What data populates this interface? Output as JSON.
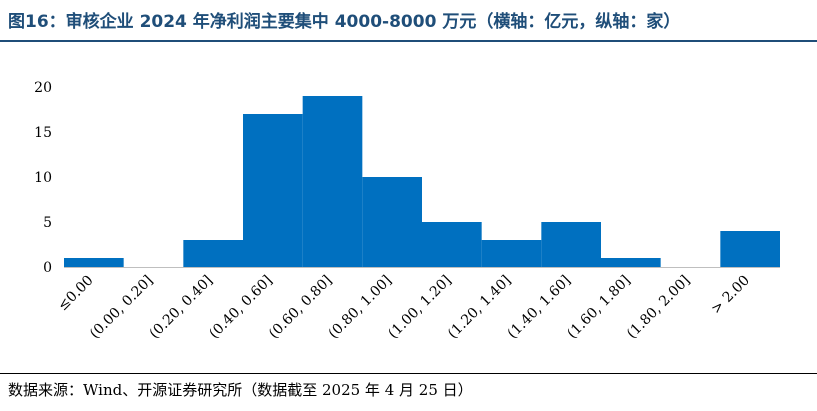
{
  "header": {
    "title": "图16：审核企业 2024 年净利润主要集中 4000-8000 万元（横轴：亿元，纵轴：家）"
  },
  "footer": {
    "source": "数据来源：Wind、开源证券研究所（数据截至 2025 年 4 月 25 日）"
  },
  "chart_data": {
    "type": "bar",
    "categories": [
      "≤0.00",
      "(0.00, 0.20]",
      "(0.20, 0.40]",
      "(0.40, 0.60]",
      "(0.60, 0.80]",
      "(0.80, 1.00]",
      "(1.00, 1.20]",
      "(1.20, 1.40]",
      "(1.40, 1.60]",
      "(1.60, 1.80]",
      "(1.80, 2.00]",
      "> 2.00"
    ],
    "values": [
      1,
      0,
      3,
      17,
      19,
      10,
      5,
      3,
      5,
      1,
      0,
      4
    ],
    "ylim": [
      0,
      20
    ],
    "yticks": [
      0,
      5,
      10,
      15,
      20
    ],
    "title": "",
    "xlabel": "",
    "ylabel": "",
    "grid": false,
    "legend": false,
    "bar_color": "#0070c0"
  }
}
